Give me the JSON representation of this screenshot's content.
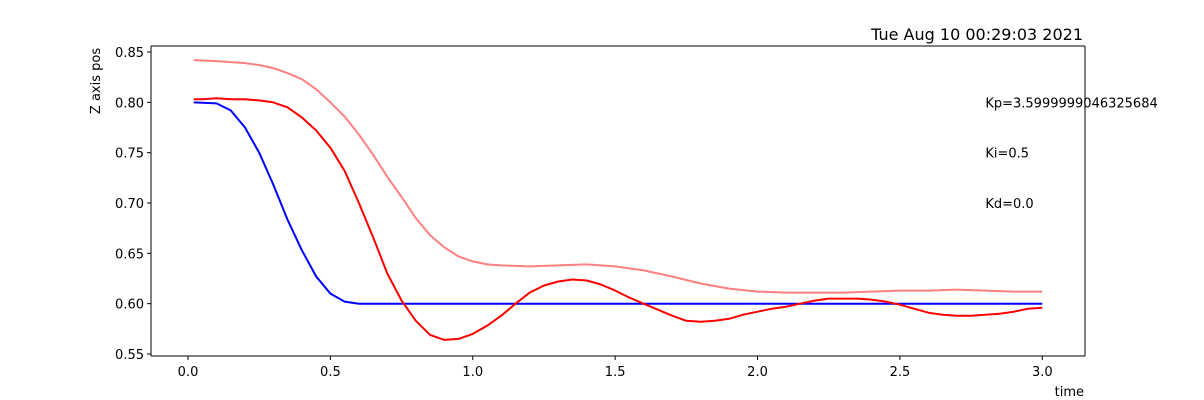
{
  "chart_data": {
    "type": "line",
    "title": "Tue Aug 10 00:29:03 2021",
    "xlabel": "time",
    "ylabel": "Z axis pos",
    "xlim": [
      -0.13,
      3.15
    ],
    "ylim": [
      0.548,
      0.856
    ],
    "x_ticks": [
      0.0,
      0.5,
      1.0,
      1.5,
      2.0,
      2.5,
      3.0
    ],
    "x_tick_labels": [
      "0.0",
      "0.5",
      "1.0",
      "1.5",
      "2.0",
      "2.5",
      "3.0"
    ],
    "y_ticks": [
      0.55,
      0.6,
      0.65,
      0.7,
      0.75,
      0.8,
      0.85
    ],
    "y_tick_labels": [
      "0.55",
      "0.60",
      "0.65",
      "0.70",
      "0.75",
      "0.80",
      "0.85"
    ],
    "grid": false,
    "annotations": [
      {
        "text": "Kp=3.5999999046325684",
        "x": 2.8,
        "y": 0.8
      },
      {
        "text": "Ki=0.5",
        "x": 2.8,
        "y": 0.75
      },
      {
        "text": "Kd=0.0",
        "x": 2.8,
        "y": 0.7
      }
    ],
    "series": [
      {
        "color": "#0000ff",
        "x": [
          0.02,
          0.1,
          0.15,
          0.2,
          0.25,
          0.3,
          0.35,
          0.4,
          0.45,
          0.5,
          0.55,
          0.6,
          0.7,
          1.0,
          1.5,
          2.0,
          2.5,
          3.0
        ],
        "y": [
          0.8,
          0.799,
          0.792,
          0.775,
          0.75,
          0.718,
          0.683,
          0.653,
          0.627,
          0.61,
          0.602,
          0.6,
          0.6,
          0.6,
          0.6,
          0.6,
          0.6,
          0.6
        ]
      },
      {
        "color": "#ff0000",
        "x": [
          0.02,
          0.05,
          0.1,
          0.15,
          0.2,
          0.25,
          0.3,
          0.35,
          0.4,
          0.45,
          0.5,
          0.55,
          0.6,
          0.65,
          0.7,
          0.75,
          0.8,
          0.85,
          0.9,
          0.95,
          1.0,
          1.05,
          1.1,
          1.15,
          1.2,
          1.25,
          1.3,
          1.35,
          1.4,
          1.45,
          1.5,
          1.55,
          1.6,
          1.65,
          1.7,
          1.75,
          1.8,
          1.85,
          1.9,
          1.95,
          2.0,
          2.05,
          2.1,
          2.15,
          2.2,
          2.25,
          2.3,
          2.35,
          2.4,
          2.45,
          2.5,
          2.55,
          2.6,
          2.65,
          2.7,
          2.75,
          2.8,
          2.85,
          2.9,
          2.95,
          3.0
        ],
        "y": [
          0.803,
          0.803,
          0.804,
          0.803,
          0.803,
          0.802,
          0.8,
          0.795,
          0.785,
          0.772,
          0.755,
          0.732,
          0.7,
          0.666,
          0.63,
          0.603,
          0.583,
          0.569,
          0.564,
          0.565,
          0.57,
          0.578,
          0.588,
          0.6,
          0.611,
          0.618,
          0.622,
          0.624,
          0.623,
          0.619,
          0.613,
          0.606,
          0.6,
          0.594,
          0.588,
          0.583,
          0.582,
          0.583,
          0.585,
          0.589,
          0.592,
          0.595,
          0.597,
          0.6,
          0.603,
          0.605,
          0.605,
          0.605,
          0.604,
          0.602,
          0.599,
          0.595,
          0.591,
          0.589,
          0.588,
          0.588,
          0.589,
          0.59,
          0.592,
          0.595,
          0.596
        ]
      },
      {
        "color": "#ff8080",
        "x": [
          0.02,
          0.1,
          0.2,
          0.25,
          0.3,
          0.35,
          0.4,
          0.45,
          0.5,
          0.55,
          0.6,
          0.65,
          0.7,
          0.75,
          0.8,
          0.85,
          0.9,
          0.95,
          1.0,
          1.05,
          1.1,
          1.2,
          1.3,
          1.4,
          1.5,
          1.6,
          1.7,
          1.8,
          1.9,
          2.0,
          2.1,
          2.2,
          2.3,
          2.4,
          2.5,
          2.6,
          2.7,
          2.8,
          2.9,
          3.0
        ],
        "y": [
          0.842,
          0.841,
          0.839,
          0.837,
          0.834,
          0.829,
          0.823,
          0.813,
          0.8,
          0.786,
          0.768,
          0.748,
          0.726,
          0.706,
          0.685,
          0.668,
          0.656,
          0.647,
          0.642,
          0.639,
          0.638,
          0.637,
          0.638,
          0.639,
          0.637,
          0.633,
          0.627,
          0.62,
          0.615,
          0.612,
          0.611,
          0.611,
          0.611,
          0.612,
          0.613,
          0.613,
          0.614,
          0.613,
          0.612,
          0.612
        ]
      }
    ]
  }
}
